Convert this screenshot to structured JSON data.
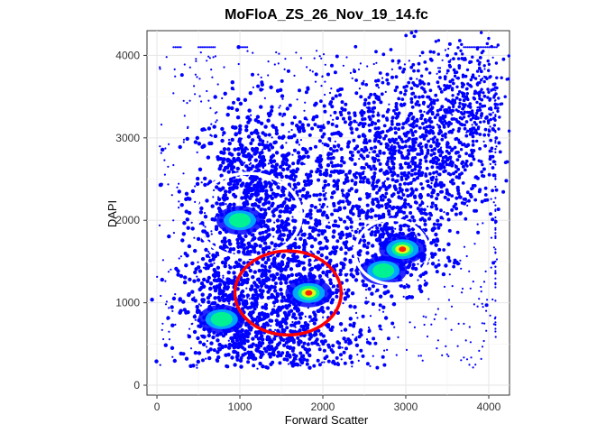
{
  "chart_data": {
    "type": "scatter",
    "title": "MoFloA_ZS_26_Nov_19_14.fc",
    "xlabel": "Forward Scatter",
    "ylabel": "DAPI",
    "xlim": [
      -120,
      4250
    ],
    "ylim": [
      -120,
      4300
    ],
    "x_ticks": [
      0,
      1000,
      2000,
      3000,
      4000
    ],
    "y_ticks": [
      0,
      1000,
      2000,
      3000,
      4000
    ],
    "x_tick_labels": [
      "0",
      "1000",
      "2000",
      "3000",
      "4000"
    ],
    "y_tick_labels": [
      "0",
      "1000",
      "2000",
      "3000",
      "4000"
    ],
    "grid": true,
    "density_colormap": [
      "#0000ff",
      "#00bfff",
      "#00ff80",
      "#ffff00",
      "#ff0000"
    ],
    "density_hotspots": [
      {
        "x": 1000,
        "y": 2000,
        "level": 0.55
      },
      {
        "x": 780,
        "y": 800,
        "level": 0.6
      },
      {
        "x": 1830,
        "y": 1120,
        "level": 1.0
      },
      {
        "x": 2960,
        "y": 1650,
        "level": 1.0
      },
      {
        "x": 2730,
        "y": 1390,
        "level": 0.65
      }
    ],
    "gates": [
      {
        "center_x": 1100,
        "center_y": 2060,
        "radius_x": 640,
        "radius_y": 510,
        "color": "#ffffff"
      },
      {
        "center_x": 1580,
        "center_y": 1120,
        "radius_x": 640,
        "radius_y": 510,
        "color": "#ff0000"
      },
      {
        "center_x": 2830,
        "center_y": 1620,
        "radius_x": 440,
        "radius_y": 390,
        "color": "#ffffff"
      }
    ]
  }
}
